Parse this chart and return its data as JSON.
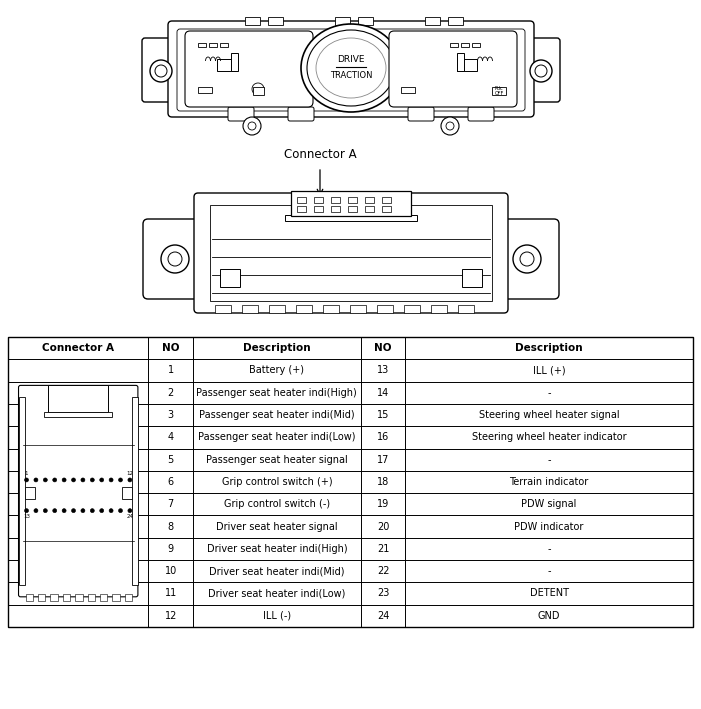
{
  "table_header": [
    "Connector A",
    "NO",
    "Description",
    "NO",
    "Description"
  ],
  "table_rows": [
    [
      "",
      "1",
      "Battery (+)",
      "13",
      "ILL (+)"
    ],
    [
      "",
      "2",
      "Passenger seat heater indi(High)",
      "14",
      "-"
    ],
    [
      "",
      "3",
      "Passenger seat heater indi(Mid)",
      "15",
      "Steering wheel heater signal"
    ],
    [
      "",
      "4",
      "Passenger seat heater indi(Low)",
      "16",
      "Steering wheel heater indicator"
    ],
    [
      "",
      "5",
      "Passenger seat heater signal",
      "17",
      "-"
    ],
    [
      "",
      "6",
      "Grip control switch (+)",
      "18",
      "Terrain indicator"
    ],
    [
      "",
      "7",
      "Grip control switch (-)",
      "19",
      "PDW signal"
    ],
    [
      "",
      "8",
      "Driver seat heater signal",
      "20",
      "PDW indicator"
    ],
    [
      "",
      "9",
      "Driver seat heater indi(High)",
      "21",
      "-"
    ],
    [
      "",
      "10",
      "Driver seat heater indi(Mid)",
      "22",
      "-"
    ],
    [
      "",
      "11",
      "Driver seat heater indi(Low)",
      "23",
      "DETENT"
    ],
    [
      "",
      "12",
      "ILL (-)",
      "24",
      "GND"
    ]
  ],
  "bg_color": "#ffffff",
  "line_color": "#000000",
  "text_color": "#000000",
  "font_size": 7.0,
  "header_font_size": 7.5,
  "fig_width": 7.01,
  "fig_height": 7.09,
  "dpi": 100
}
